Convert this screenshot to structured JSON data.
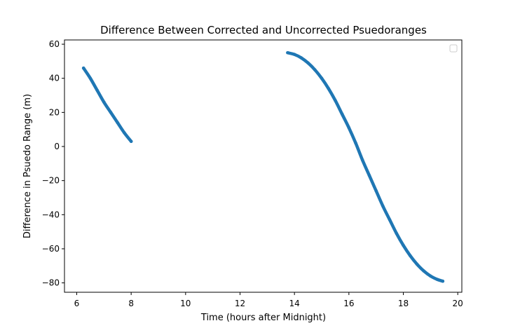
{
  "chart_data": {
    "type": "scatter",
    "title": "Difference Between Corrected and Uncorrected Psuedoranges",
    "xlabel": "Time (hours after Midnight)",
    "ylabel": "Difference in Psuedo Range (m)",
    "xlim": [
      5.55,
      20.15
    ],
    "ylim": [
      -85.5,
      62.5
    ],
    "xticks": [
      6,
      8,
      10,
      12,
      14,
      16,
      18,
      20
    ],
    "yticks": [
      -80,
      -60,
      -40,
      -20,
      0,
      20,
      40,
      60
    ],
    "xtick_labels": [
      "6",
      "8",
      "10",
      "12",
      "14",
      "16",
      "18",
      "20"
    ],
    "ytick_labels": [
      "−80",
      "−60",
      "−40",
      "−20",
      "0",
      "20",
      "40",
      "60"
    ],
    "grid": false,
    "legend": {
      "visible": true,
      "placement": "top-right",
      "entries": []
    },
    "color": "#1f77b4",
    "series": [
      {
        "x": [
          6.25,
          6.5,
          6.75,
          7.0,
          7.25,
          7.5,
          7.75,
          8.0
        ],
        "y": [
          46,
          40,
          33,
          26,
          20,
          14,
          8,
          3
        ]
      },
      {
        "x": [
          13.75,
          14.0,
          14.25,
          14.5,
          14.75,
          15.0,
          15.25,
          15.5,
          15.75,
          16.0,
          16.25,
          16.5,
          16.75,
          17.0,
          17.25,
          17.5,
          17.75,
          18.0,
          18.25,
          18.5,
          18.75,
          19.0,
          19.25,
          19.45
        ],
        "y": [
          55,
          54,
          52,
          49,
          45,
          40,
          34,
          27,
          19,
          11,
          2,
          -8,
          -17,
          -26,
          -35,
          -43,
          -51,
          -58,
          -64,
          -69,
          -73,
          -76,
          -78,
          -79
        ]
      }
    ]
  }
}
